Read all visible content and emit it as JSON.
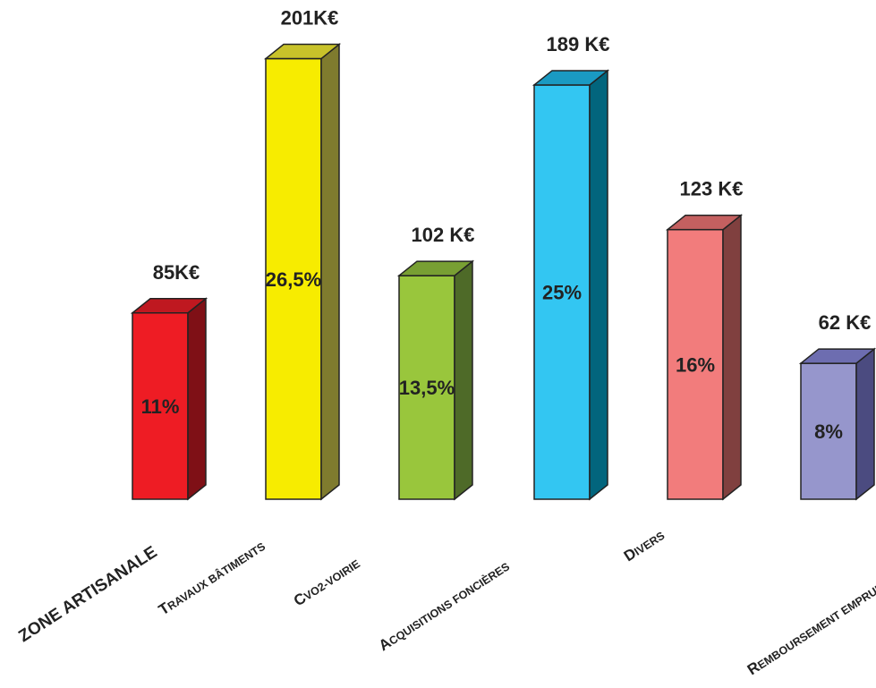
{
  "chart_data": {
    "type": "bar",
    "style": "3d",
    "categories": [
      "ZONE ARTISANALE",
      "TRAVAUX BÂTIMENTS",
      "CVO2-VOIRIE",
      "ACQUISITIONS FONCIÈRES",
      "DIVERS",
      "REMBOURSEMENT  EMPRUNTS"
    ],
    "values": [
      85,
      201,
      102,
      189,
      123,
      62
    ],
    "unit": "K€",
    "value_labels": [
      "85K€",
      "201K€",
      "102 K€",
      "189 K€",
      "123 K€",
      "62 K€"
    ],
    "percent_labels": [
      "11%",
      "26,5%",
      "13,5%",
      "25%",
      "16%",
      "8%"
    ],
    "percent_values": [
      11,
      26.5,
      13.5,
      25,
      16,
      8
    ],
    "colors": {
      "front": [
        "#ee1c24",
        "#f7ec00",
        "#99c63c",
        "#33c6f2",
        "#f27c7c",
        "#9696cc"
      ],
      "side": [
        "#7f1016",
        "#7f7b2e",
        "#4e6a28",
        "#02657d",
        "#80403f",
        "#4b4b80"
      ],
      "top": [
        "#bf1820",
        "#c8c22a",
        "#789f33",
        "#1a9ac2",
        "#c46060",
        "#6d6db0"
      ]
    },
    "title": "",
    "xlabel": "",
    "ylabel": "",
    "axes_visible": false,
    "grid": false,
    "legend": "none"
  }
}
